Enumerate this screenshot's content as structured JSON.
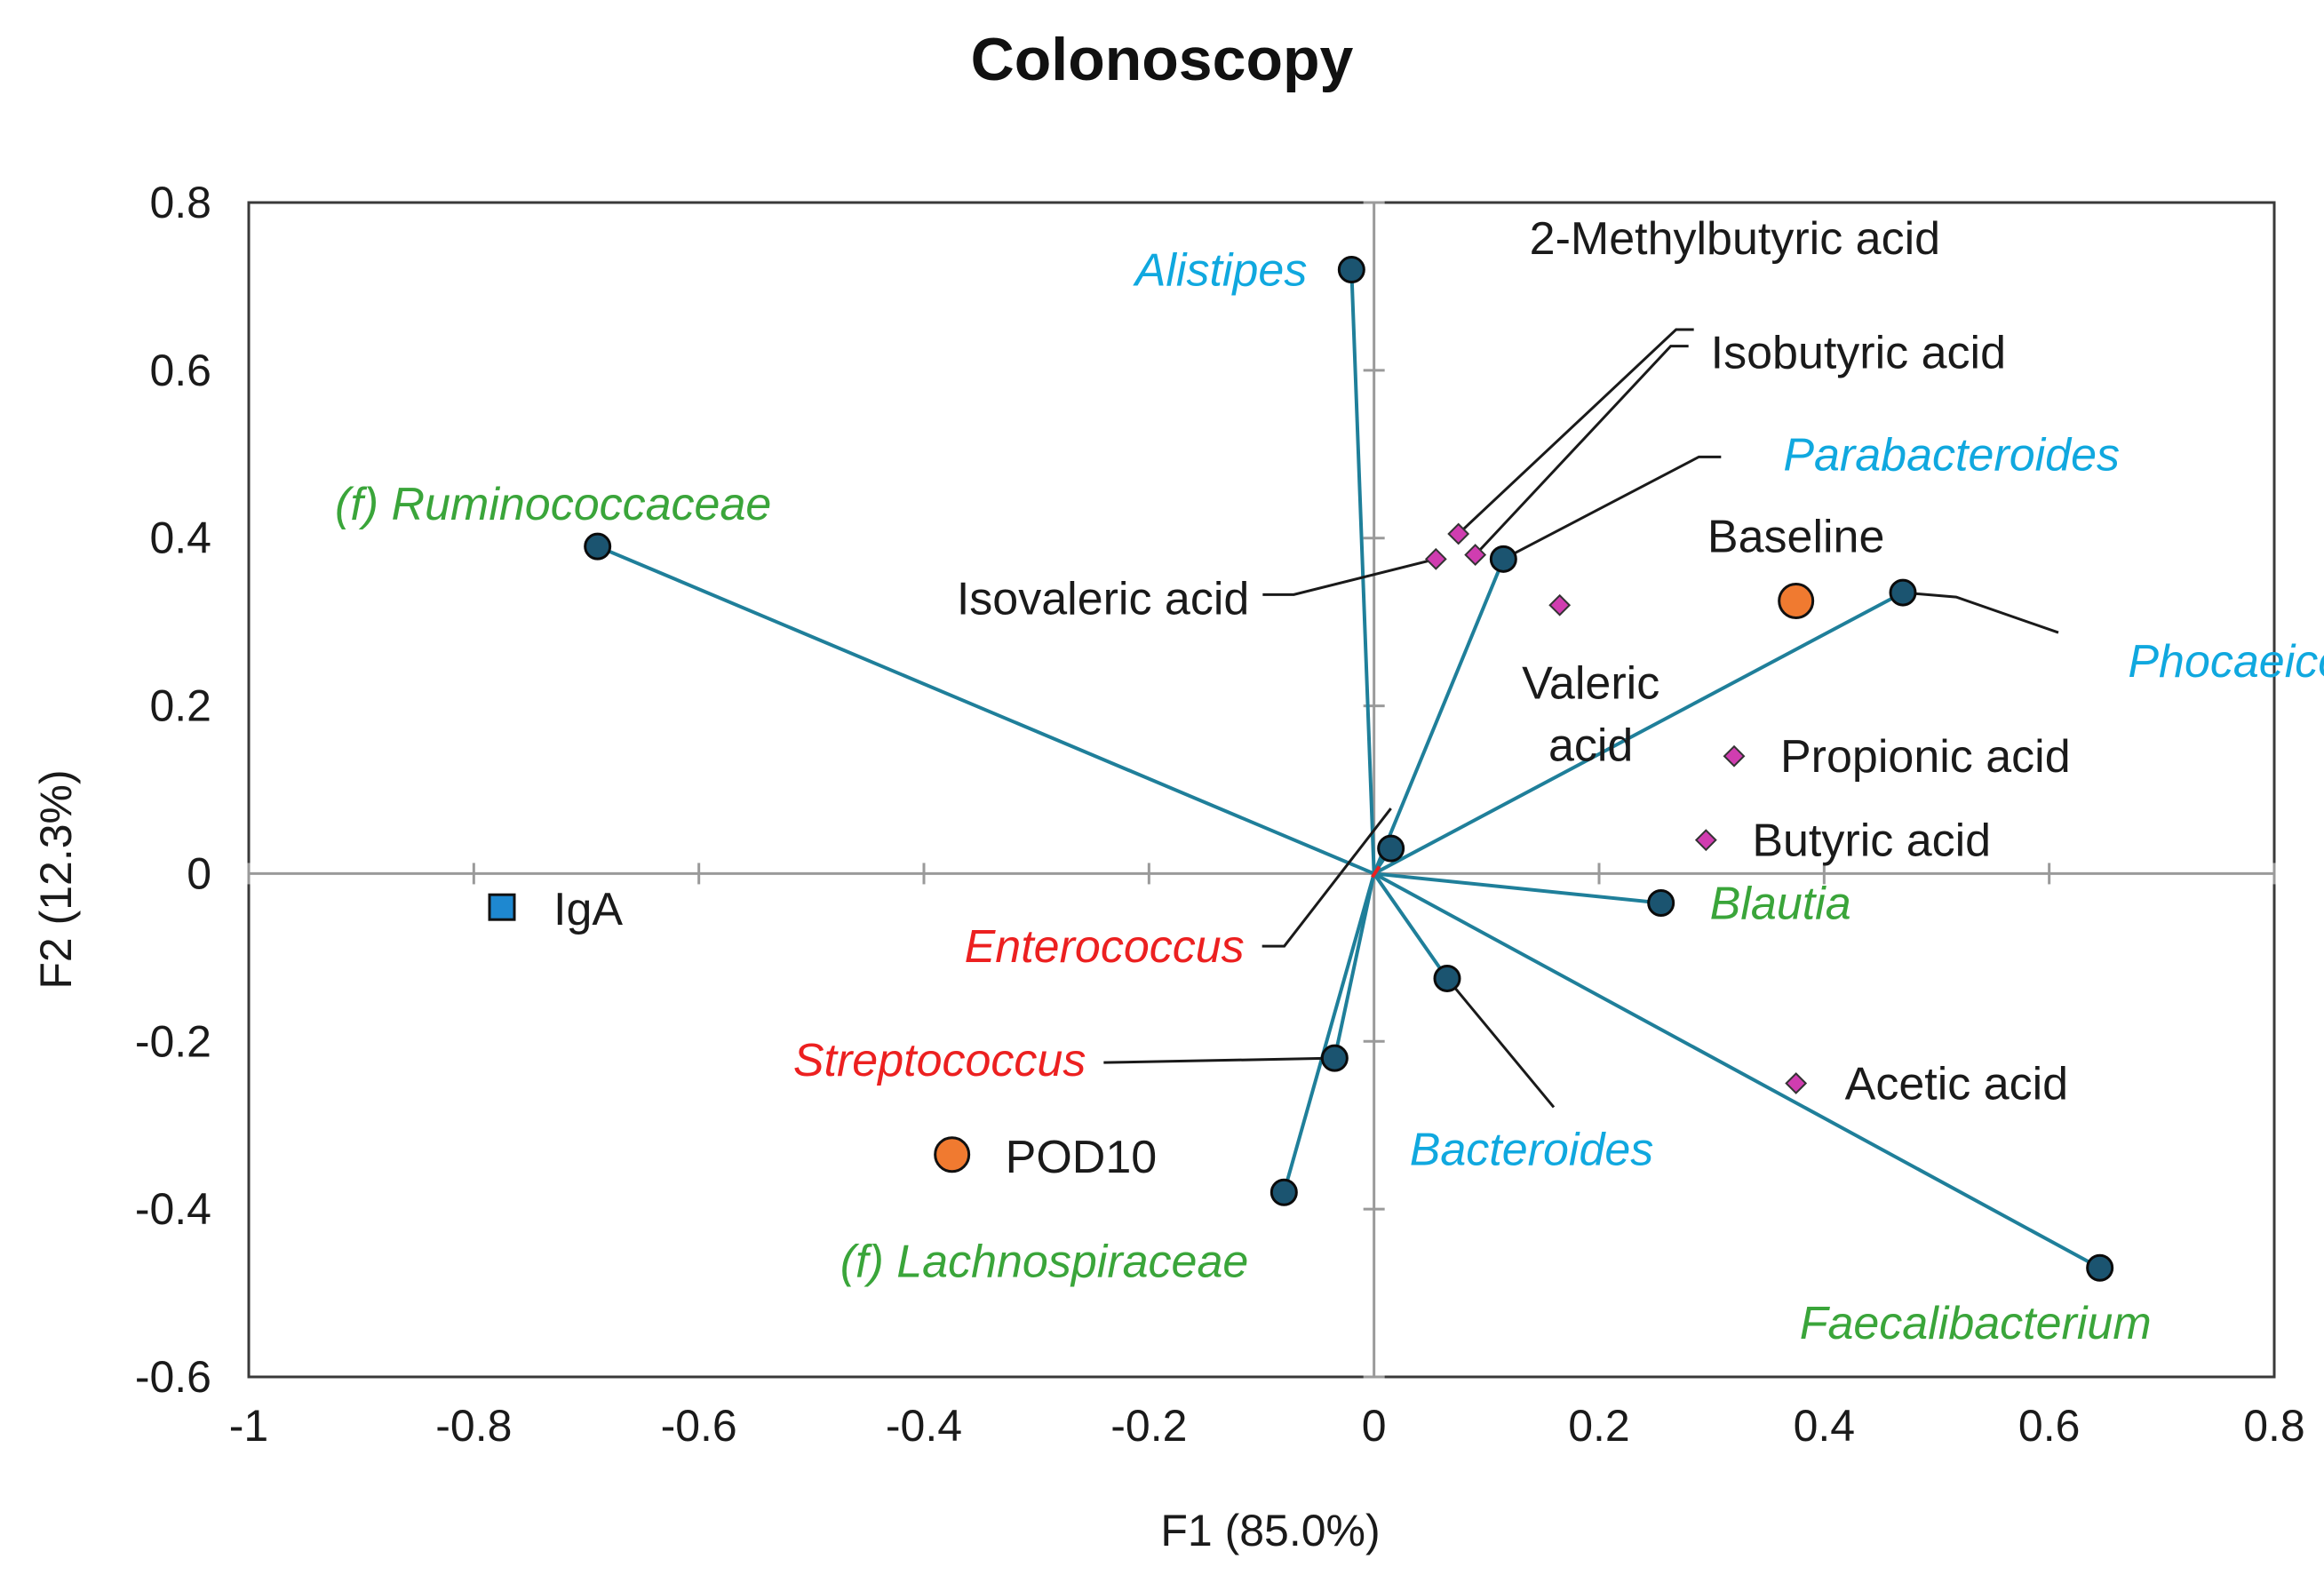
{
  "chart_data": {
    "type": "scatter",
    "subtype": "biplot",
    "title": "Colonoscopy",
    "xlabel": "F1 (85.0%)",
    "ylabel": "F2 (12.3%)",
    "xlim": [
      -1,
      0.8
    ],
    "ylim": [
      -0.6,
      0.8
    ],
    "xticks": [
      -1,
      -0.8,
      -0.6,
      -0.4,
      -0.2,
      0,
      0.2,
      0.4,
      0.6,
      0.8
    ],
    "xtick_labels": [
      "-1",
      "-0.8",
      "-0.6",
      "-0.4",
      "-0.2",
      "0",
      "0.2",
      "0.4",
      "0.6",
      "0.8"
    ],
    "yticks": [
      -0.6,
      -0.4,
      -0.2,
      0,
      0.2,
      0.4,
      0.6,
      0.8
    ],
    "ytick_labels": [
      "-0.6",
      "-0.4",
      "-0.2",
      "0",
      "0.2",
      "0.4",
      "0.6",
      "0.8"
    ],
    "colors": {
      "vector": "#1f7f9a",
      "variable_fill": "#1b5470",
      "acid_fill": "#d03db0",
      "observation_fill": "#f07a30",
      "iga_fill": "#1e88d0",
      "blue_taxa": "#10a8df",
      "green_taxa": "#3aa53a",
      "red_taxa": "#ec2020",
      "black": "#1a1a1a",
      "frame": "#3a3a3a"
    },
    "variables": [
      {
        "name": "Alistipes",
        "x": -0.02,
        "y": 0.72,
        "color": "blue",
        "italic": true
      },
      {
        "name": "(f) Ruminococcaceae",
        "x": -0.69,
        "y": 0.39,
        "color": "green",
        "italic": true
      },
      {
        "name": "Parabacteroides",
        "x": 0.115,
        "y": 0.375,
        "color": "blue",
        "italic": true
      },
      {
        "name": "Phocaeicola",
        "x": 0.47,
        "y": 0.335,
        "color": "blue",
        "italic": true
      },
      {
        "name": "Blautia",
        "x": 0.255,
        "y": -0.035,
        "color": "green",
        "italic": true
      },
      {
        "name": "Bacteroides",
        "x": 0.065,
        "y": -0.125,
        "color": "blue",
        "italic": true
      },
      {
        "name": "Faecalibacterium",
        "x": 0.645,
        "y": -0.47,
        "color": "green",
        "italic": true
      },
      {
        "name": "Enterococcus",
        "x": 0.015,
        "y": 0.03,
        "color": "red",
        "italic": true
      },
      {
        "name": "Streptococcus",
        "x": -0.035,
        "y": -0.22,
        "color": "red",
        "italic": true
      },
      {
        "name": "(f) Lachnospiraceae",
        "x": -0.08,
        "y": -0.38,
        "color": "green",
        "italic": true
      }
    ],
    "supplementary": [
      {
        "name": "2-Methylbutyric acid",
        "x": 0.075,
        "y": 0.405
      },
      {
        "name": "Isobutyric acid",
        "x": 0.09,
        "y": 0.38
      },
      {
        "name": "Isovaleric acid",
        "x": 0.055,
        "y": 0.375
      },
      {
        "name": "Valeric acid",
        "x": 0.165,
        "y": 0.32
      },
      {
        "name": "Propionic acid",
        "x": 0.32,
        "y": 0.14
      },
      {
        "name": "Butyric acid",
        "x": 0.295,
        "y": 0.04
      },
      {
        "name": "Acetic acid",
        "x": 0.375,
        "y": -0.25
      }
    ],
    "observations": [
      {
        "name": "Baseline",
        "x": 0.375,
        "y": 0.325
      },
      {
        "name": "POD10",
        "x": -0.375,
        "y": -0.335
      }
    ],
    "other": [
      {
        "name": "IgA",
        "x": -0.775,
        "y": -0.04,
        "marker": "square"
      }
    ]
  }
}
